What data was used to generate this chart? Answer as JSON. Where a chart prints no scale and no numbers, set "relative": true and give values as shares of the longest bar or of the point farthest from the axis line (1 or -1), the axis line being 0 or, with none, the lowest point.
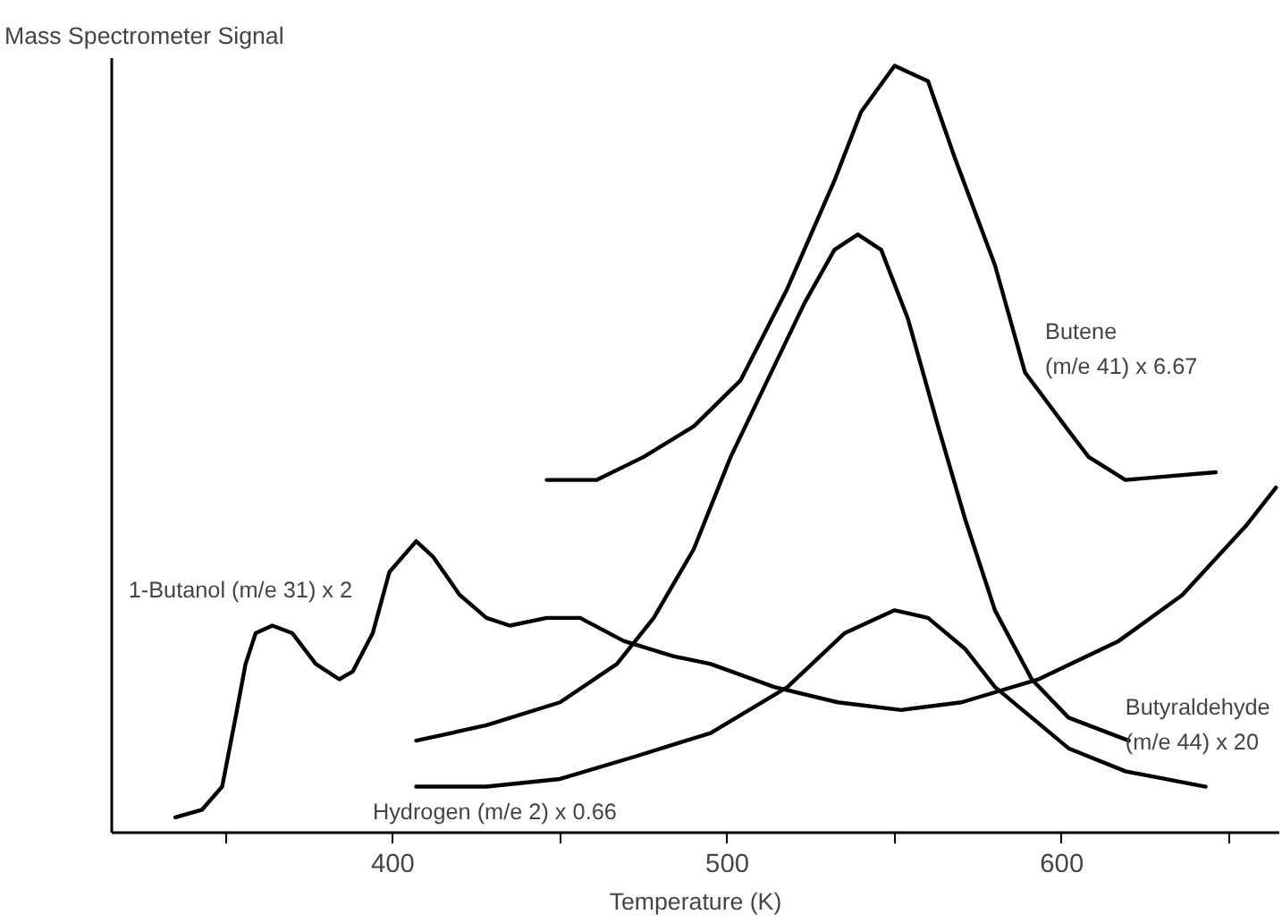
{
  "chart_data": {
    "type": "line",
    "relative": true,
    "xlabel": "Temperature (K)",
    "ylabel": "Mass Spectrometer Signal",
    "xlim": [
      316,
      665
    ],
    "xticks": [
      {
        "value": 350,
        "label": null
      },
      400,
      {
        "value": 450,
        "label": null
      },
      500,
      {
        "value": 550,
        "label": null
      },
      600,
      {
        "value": 650,
        "label": null
      }
    ],
    "grid": false,
    "marker": "none",
    "line_style": "solid",
    "series": [
      {
        "name": "1-Butanol  (m/e 31) x 2",
        "color": "#000000",
        "x": [
          335,
          343,
          349,
          353,
          356,
          359,
          364,
          370,
          377,
          384,
          388,
          394,
          399,
          407,
          412,
          420,
          428,
          435,
          446,
          456,
          469,
          484,
          495,
          514,
          533,
          552,
          570,
          593,
          617,
          636,
          655,
          664
        ],
        "values": [
          0.02,
          0.03,
          0.06,
          0.15,
          0.22,
          0.26,
          0.27,
          0.26,
          0.22,
          0.2,
          0.21,
          0.26,
          0.34,
          0.38,
          0.36,
          0.31,
          0.28,
          0.27,
          0.28,
          0.28,
          0.25,
          0.23,
          0.22,
          0.19,
          0.17,
          0.16,
          0.17,
          0.2,
          0.25,
          0.31,
          0.4,
          0.45
        ]
      },
      {
        "name": "Butene (m/e 41) x 6.67",
        "color": "#000000",
        "x": [
          446,
          461,
          475,
          490,
          504,
          518,
          532,
          540,
          550,
          560,
          568,
          580,
          589,
          601,
          608,
          619,
          646
        ],
        "values": [
          0.46,
          0.46,
          0.49,
          0.53,
          0.59,
          0.71,
          0.85,
          0.94,
          1.0,
          0.98,
          0.88,
          0.74,
          0.6,
          0.53,
          0.49,
          0.46,
          0.47
        ]
      },
      {
        "name": "Butyraldehyde (m/e 44) x 20",
        "color": "#000000",
        "x": [
          407,
          428,
          450,
          467,
          478,
          490,
          501,
          512,
          523,
          532,
          539,
          546,
          554,
          563,
          571,
          580,
          591,
          602,
          620
        ],
        "values": [
          0.12,
          0.14,
          0.17,
          0.22,
          0.28,
          0.37,
          0.49,
          0.59,
          0.69,
          0.76,
          0.78,
          0.76,
          0.67,
          0.53,
          0.41,
          0.29,
          0.2,
          0.15,
          0.12
        ]
      },
      {
        "name": "Hydrogen (m/e 2) x 0.66",
        "color": "#000000",
        "x": [
          407,
          428,
          450,
          473,
          495,
          518,
          535,
          550,
          560,
          571,
          580,
          591,
          602,
          619,
          643
        ],
        "values": [
          0.06,
          0.06,
          0.07,
          0.1,
          0.13,
          0.19,
          0.26,
          0.29,
          0.28,
          0.24,
          0.19,
          0.15,
          0.11,
          0.08,
          0.06
        ]
      }
    ]
  }
}
